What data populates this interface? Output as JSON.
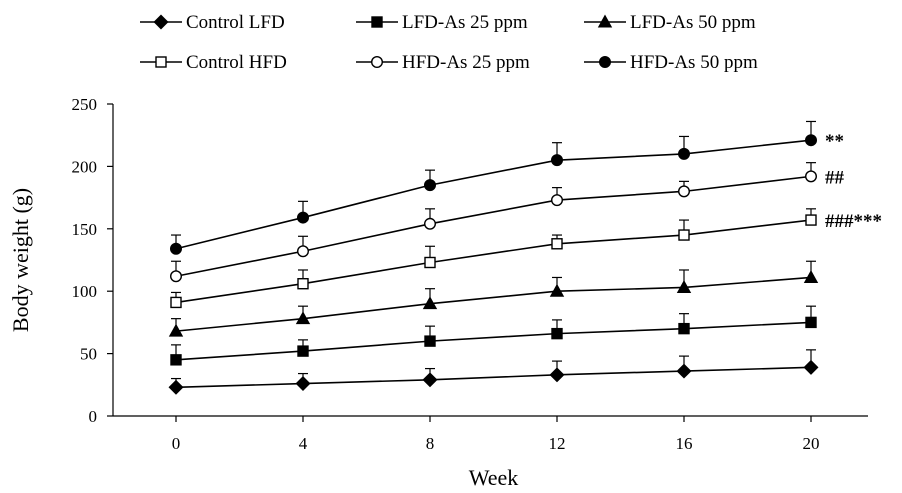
{
  "chart_data": {
    "type": "line",
    "title": "",
    "xlabel": "Week",
    "ylabel": "Body weight (g)",
    "x": [
      0,
      4,
      8,
      12,
      16,
      20
    ],
    "xlim": [
      0,
      20
    ],
    "ylim": [
      0,
      250
    ],
    "yticks": [
      0,
      50,
      100,
      150,
      200,
      250
    ],
    "grid": false,
    "legend_position": "top",
    "series": [
      {
        "name": "Control LFD",
        "marker": "diamond",
        "filled": true,
        "values": [
          23,
          26,
          29,
          33,
          36,
          39
        ],
        "errors": [
          7,
          8,
          9,
          11,
          12,
          14
        ]
      },
      {
        "name": "LFD-As 25 ppm",
        "marker": "square",
        "filled": true,
        "values": [
          45,
          52,
          60,
          66,
          70,
          75
        ],
        "errors": [
          12,
          9,
          12,
          11,
          12,
          13
        ]
      },
      {
        "name": "LFD-As 50 ppm",
        "marker": "triangle",
        "filled": true,
        "values": [
          68,
          78,
          90,
          100,
          103,
          111
        ],
        "errors": [
          10,
          10,
          12,
          11,
          14,
          13
        ]
      },
      {
        "name": "Control HFD",
        "marker": "square",
        "filled": false,
        "values": [
          91,
          106,
          123,
          138,
          145,
          157
        ],
        "errors": [
          8,
          11,
          13,
          7,
          12,
          9
        ]
      },
      {
        "name": "HFD-As 25 ppm",
        "marker": "circle",
        "filled": false,
        "values": [
          112,
          132,
          154,
          173,
          180,
          192
        ],
        "errors": [
          12,
          12,
          12,
          10,
          8,
          11
        ]
      },
      {
        "name": "HFD-As 50 ppm",
        "marker": "circle",
        "filled": true,
        "values": [
          134,
          159,
          185,
          205,
          210,
          221
        ],
        "errors": [
          11,
          13,
          12,
          14,
          14,
          15
        ]
      }
    ],
    "annotations": [
      {
        "text": "**",
        "series": "HFD-As 50 ppm",
        "x": 20
      },
      {
        "text": "##",
        "series": "HFD-As 25 ppm",
        "x": 20
      },
      {
        "text": "###***",
        "series": "Control HFD",
        "x": 20
      }
    ]
  }
}
